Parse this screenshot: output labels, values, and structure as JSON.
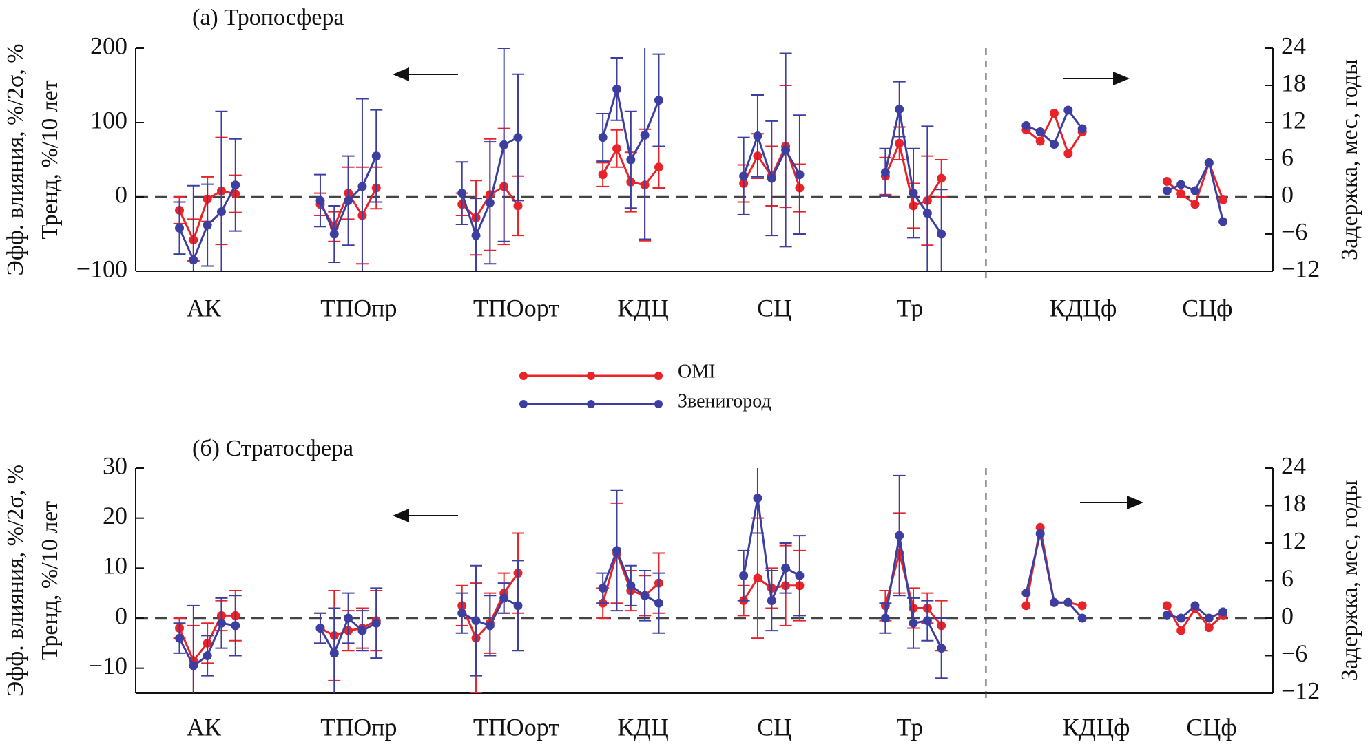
{
  "chart_data": [
    {
      "type": "line",
      "title": "(а) Тропосфера",
      "ylabel": [
        "Эфф. влияния, %/2σ, %",
        "Тренд, %/10 лет"
      ],
      "y2label": "Задержка, мес, годы",
      "xlim": [
        0,
        26
      ],
      "xticks": [
        {
          "value": 1.56,
          "label": "АК"
        },
        {
          "value": 5.1,
          "label": "ТПОпр"
        },
        {
          "value": 8.7,
          "label": "ТПОорт"
        },
        {
          "value": 11.6,
          "label": "КДЦ"
        },
        {
          "value": 14.6,
          "label": "СЦ"
        },
        {
          "value": 17.7,
          "label": "Тр"
        },
        {
          "value": 21.66,
          "label": "КДЦф"
        },
        {
          "value": 24.5,
          "label": "СЦф"
        }
      ],
      "divider": 19.44,
      "ylim": [
        -100,
        200
      ],
      "yticks": [
        {
          "value": -100,
          "label": "−100"
        },
        0,
        100,
        200
      ],
      "y2lim": [
        -12,
        24
      ],
      "y2ticks": [
        {
          "value": -12,
          "label": "−12"
        },
        {
          "value": -6,
          "label": "−6"
        },
        0,
        6,
        12,
        18,
        24
      ],
      "series": [
        {
          "name": "OMI",
          "color": "#e8242a",
          "x": [
            1.0,
            1.32,
            1.64,
            1.96,
            2.28,
            null,
            4.22,
            4.54,
            4.86,
            5.18,
            5.5,
            null,
            7.46,
            7.78,
            8.1,
            8.42,
            8.74,
            null,
            10.68,
            11.0,
            11.32,
            11.64,
            11.96,
            null,
            13.9,
            14.22,
            14.54,
            14.86,
            15.18,
            null,
            17.14,
            17.46,
            17.78,
            18.1,
            18.42
          ],
          "values": [
            -18,
            -58,
            -3,
            8,
            4,
            null,
            -10,
            -40,
            5,
            -25,
            12,
            null,
            -10,
            -28,
            3,
            14,
            -12,
            null,
            30,
            65,
            20,
            16,
            40,
            null,
            18,
            55,
            28,
            68,
            12,
            null,
            28,
            72,
            -12,
            -5,
            25
          ],
          "errors": [
            18,
            28,
            30,
            72,
            25,
            null,
            15,
            20,
            35,
            65,
            28,
            null,
            15,
            50,
            75,
            78,
            40,
            null,
            16,
            25,
            40,
            75,
            28,
            null,
            25,
            30,
            40,
            82,
            32,
            null,
            25,
            22,
            30,
            60,
            25
          ]
        },
        {
          "name": "Звенигород",
          "color": "#3c3fa0",
          "x": [
            1.0,
            1.32,
            1.64,
            1.96,
            2.28,
            null,
            4.22,
            4.54,
            4.86,
            5.18,
            5.5,
            null,
            7.46,
            7.78,
            8.1,
            8.42,
            8.74,
            null,
            10.68,
            11.0,
            11.32,
            11.64,
            11.96,
            null,
            13.9,
            14.22,
            14.54,
            14.86,
            15.18,
            null,
            17.14,
            17.46,
            17.78,
            18.1,
            18.42
          ],
          "values": [
            -42,
            -85,
            -38,
            -20,
            16,
            null,
            -5,
            -50,
            -5,
            14,
            55,
            null,
            5,
            -52,
            -8,
            70,
            80,
            null,
            80,
            145,
            50,
            83,
            130,
            null,
            28,
            82,
            25,
            63,
            30,
            null,
            33,
            118,
            5,
            -22,
            -50
          ],
          "errors": [
            35,
            100,
            55,
            135,
            62,
            null,
            35,
            38,
            60,
            118,
            62,
            null,
            42,
            50,
            82,
            130,
            85,
            null,
            32,
            42,
            65,
            140,
            62,
            null,
            52,
            55,
            77,
            130,
            80,
            null,
            32,
            37,
            60,
            117,
            60
          ]
        },
        {
          "color": "#e8242a",
          "axis": "y2",
          "x": [
            20.36,
            20.68,
            21.0,
            21.32,
            21.64,
            null,
            23.58,
            23.9,
            24.22,
            24.54,
            24.86
          ],
          "values": [
            10.8,
            9,
            13.5,
            7,
            10.5,
            null,
            2.5,
            0.5,
            -1.2,
            5.5,
            -0.5
          ]
        },
        {
          "color": "#3c3fa0",
          "axis": "y2",
          "x": [
            20.36,
            20.68,
            21.0,
            21.32,
            21.64,
            null,
            23.58,
            23.9,
            24.22,
            24.54,
            24.86
          ],
          "values": [
            11.5,
            10.5,
            8.5,
            14,
            11,
            null,
            1,
            2,
            1,
            5.5,
            -4
          ]
        }
      ]
    },
    {
      "type": "line",
      "title": "(б) Стратосфера",
      "ylabel": [
        "Эфф. влияния, %/2σ, %",
        "Тренд, %/10 лет"
      ],
      "y2label": "Задержка, мес, годы",
      "xlim": [
        0,
        26
      ],
      "xticks": [
        {
          "value": 1.56,
          "label": "АК"
        },
        {
          "value": 5.1,
          "label": "ТПОпр"
        },
        {
          "value": 8.7,
          "label": "ТПОорт"
        },
        {
          "value": 11.6,
          "label": "КДЦ"
        },
        {
          "value": 14.6,
          "label": "СЦ"
        },
        {
          "value": 17.7,
          "label": "Тр"
        },
        {
          "value": 21.96,
          "label": "КДЦф"
        },
        {
          "value": 24.6,
          "label": "СЦф"
        }
      ],
      "divider": 19.44,
      "ylim": [
        -15,
        30
      ],
      "yticks": [
        {
          "value": -10,
          "label": "−10"
        },
        0,
        10,
        20,
        30
      ],
      "y2lim": [
        -12,
        24
      ],
      "y2ticks": [
        {
          "value": -12,
          "label": "−12"
        },
        {
          "value": -6,
          "label": "−6"
        },
        0,
        6,
        12,
        18,
        24
      ],
      "series": [
        {
          "color": "#e8242a",
          "x": [
            1.0,
            1.32,
            1.64,
            1.96,
            2.28,
            null,
            4.22,
            4.54,
            4.86,
            5.18,
            5.5,
            null,
            7.46,
            7.78,
            8.1,
            8.42,
            8.74,
            null,
            10.68,
            11.0,
            11.32,
            11.64,
            11.96,
            null,
            13.9,
            14.22,
            14.54,
            14.86,
            15.18,
            null,
            17.14,
            17.46,
            17.78,
            18.1,
            18.42
          ],
          "values": [
            -2,
            -8.5,
            -5,
            0.5,
            0.5,
            null,
            -2,
            -3.5,
            -2.5,
            -2,
            -0.5,
            null,
            2.5,
            -4,
            -1,
            5,
            9,
            null,
            3,
            13,
            5.5,
            4.5,
            7,
            null,
            3.5,
            8,
            6,
            6.5,
            6.5,
            null,
            2.5,
            13,
            2,
            2,
            -1.5
          ],
          "errors": [
            2,
            7,
            4,
            3,
            5,
            null,
            3,
            9,
            4,
            4,
            6,
            null,
            4,
            11,
            6,
            4,
            8,
            null,
            3,
            10,
            4,
            4,
            6,
            null,
            3,
            12,
            4,
            8,
            7,
            null,
            3,
            8,
            4,
            3,
            5
          ]
        },
        {
          "color": "#3c3fa0",
          "x": [
            1.0,
            1.32,
            1.64,
            1.96,
            2.28,
            null,
            4.22,
            4.54,
            4.86,
            5.18,
            5.5,
            null,
            7.46,
            7.78,
            8.1,
            8.42,
            8.74,
            null,
            10.68,
            11.0,
            11.32,
            11.64,
            11.96,
            null,
            13.9,
            14.22,
            14.54,
            14.86,
            15.18,
            null,
            17.14,
            17.46,
            17.78,
            18.1,
            18.42
          ],
          "values": [
            -4,
            -9.5,
            -7.5,
            -1,
            -1.5,
            null,
            -2,
            -7,
            0,
            -2.5,
            -1,
            null,
            1,
            -0.5,
            -1.5,
            4,
            2.5,
            null,
            6,
            13.5,
            6.5,
            4.5,
            3,
            null,
            8.5,
            24,
            3.5,
            10,
            8.5,
            null,
            0,
            16.5,
            -1,
            -0.5,
            -6
          ],
          "errors": [
            3,
            12,
            4,
            5,
            6,
            null,
            3,
            9,
            5,
            4,
            7,
            null,
            4,
            11,
            6,
            3,
            9,
            null,
            3,
            12,
            4,
            5,
            6,
            null,
            5,
            7,
            6,
            5,
            8,
            null,
            3,
            12,
            5,
            4,
            6
          ]
        },
        {
          "color": "#e8242a",
          "axis": "y2",
          "x": [
            20.36,
            20.68,
            21.0,
            21.32,
            21.64,
            null,
            23.58,
            23.9,
            24.22,
            24.54,
            24.86
          ],
          "values": [
            2,
            14.5,
            2.5,
            2.5,
            2,
            null,
            2,
            -2,
            1.5,
            -1.5,
            0.5
          ]
        },
        {
          "color": "#3c3fa0",
          "axis": "y2",
          "x": [
            20.36,
            20.68,
            21.0,
            21.32,
            21.64,
            null,
            23.58,
            23.9,
            24.22,
            24.54,
            24.86
          ],
          "values": [
            4,
            13.5,
            2.5,
            2.5,
            0,
            null,
            0.5,
            0,
            2,
            0,
            1
          ]
        }
      ]
    }
  ]
}
